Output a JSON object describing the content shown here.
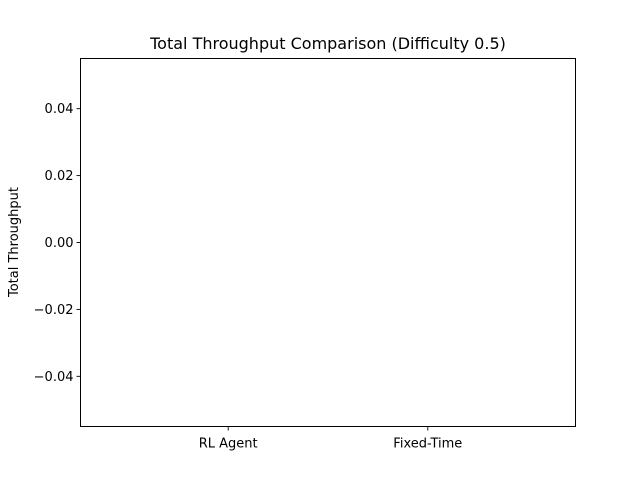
{
  "chart_data": {
    "type": "bar",
    "title": "Total Throughput Comparison (Difficulty 0.5)",
    "xlabel": "",
    "ylabel": "Total Throughput",
    "categories": [
      "RL Agent",
      "Fixed-Time"
    ],
    "values": [
      0,
      0
    ],
    "ylim": [
      -0.055,
      0.055
    ],
    "yticks": [
      0.04,
      0.02,
      0.0,
      -0.02,
      -0.04
    ],
    "ytick_labels": [
      "0.04",
      "0.02",
      "0.00",
      "−0.02",
      "−0.04"
    ],
    "grid": false,
    "legend": "none"
  }
}
